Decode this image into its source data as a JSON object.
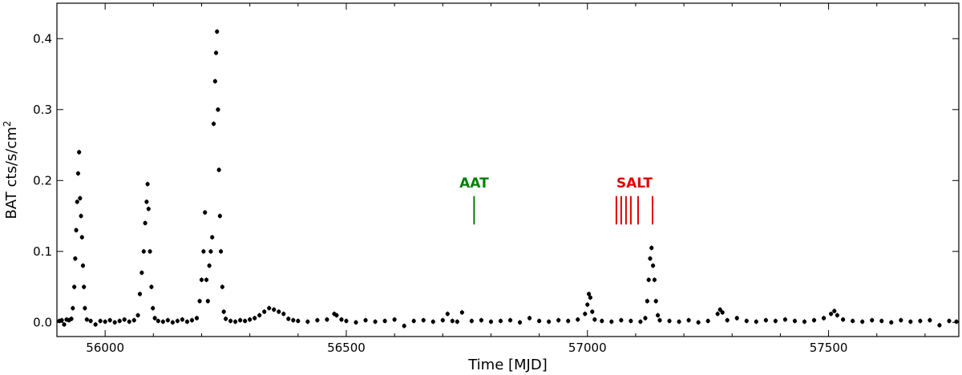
{
  "chart_data": {
    "type": "scatter",
    "title": "",
    "xlabel": "Time [MJD]",
    "ylabel": "BAT cts/s/cm",
    "ylabel_superscript": "2",
    "xlim": [
      55900,
      57770
    ],
    "ylim": [
      -0.02,
      0.45
    ],
    "xticks": [
      56000,
      56500,
      57000,
      57500
    ],
    "xtick_labels": [
      "56000",
      "56500",
      "57000",
      "57500"
    ],
    "yticks": [
      0.0,
      0.1,
      0.2,
      0.3,
      0.4
    ],
    "ytick_labels": [
      "0.0",
      "0.1",
      "0.2",
      "0.3",
      "0.4"
    ],
    "grid": false,
    "series": [
      {
        "marker": "dot",
        "color": "#000000",
        "points": [
          [
            55905,
            0.002
          ],
          [
            55910,
            0.003
          ],
          [
            55915,
            -0.003
          ],
          [
            55920,
            0.004
          ],
          [
            55925,
            0.003
          ],
          [
            55930,
            0.005
          ],
          [
            55933,
            0.02
          ],
          [
            55936,
            0.05
          ],
          [
            55938,
            0.09
          ],
          [
            55940,
            0.13
          ],
          [
            55942,
            0.17
          ],
          [
            55944,
            0.21
          ],
          [
            55946,
            0.24
          ],
          [
            55948,
            0.175
          ],
          [
            55950,
            0.15
          ],
          [
            55952,
            0.12
          ],
          [
            55954,
            0.08
          ],
          [
            55956,
            0.05
          ],
          [
            55958,
            0.02
          ],
          [
            55962,
            0.004
          ],
          [
            55970,
            0.002
          ],
          [
            55980,
            -0.003
          ],
          [
            55990,
            0.002
          ],
          [
            56000,
            0.001
          ],
          [
            56010,
            0.003
          ],
          [
            56020,
            0.0
          ],
          [
            56030,
            0.002
          ],
          [
            56040,
            0.004
          ],
          [
            56050,
            0.001
          ],
          [
            56060,
            0.003
          ],
          [
            56068,
            0.01
          ],
          [
            56072,
            0.04
          ],
          [
            56076,
            0.07
          ],
          [
            56080,
            0.1
          ],
          [
            56083,
            0.14
          ],
          [
            56086,
            0.17
          ],
          [
            56088,
            0.195
          ],
          [
            56090,
            0.16
          ],
          [
            56093,
            0.1
          ],
          [
            56096,
            0.05
          ],
          [
            56099,
            0.02
          ],
          [
            56103,
            0.006
          ],
          [
            56110,
            0.002
          ],
          [
            56120,
            0.001
          ],
          [
            56130,
            0.003
          ],
          [
            56140,
            0.0
          ],
          [
            56150,
            0.002
          ],
          [
            56160,
            0.004
          ],
          [
            56170,
            0.001
          ],
          [
            56180,
            0.003
          ],
          [
            56190,
            0.006
          ],
          [
            56196,
            0.03
          ],
          [
            56200,
            0.06
          ],
          [
            56204,
            0.1
          ],
          [
            56207,
            0.155
          ],
          [
            56210,
            0.06
          ],
          [
            56213,
            0.03
          ],
          [
            56216,
            0.08
          ],
          [
            56219,
            0.1
          ],
          [
            56222,
            0.12
          ],
          [
            56225,
            0.28
          ],
          [
            56228,
            0.34
          ],
          [
            56230,
            0.38
          ],
          [
            56232,
            0.41
          ],
          [
            56234,
            0.3
          ],
          [
            56236,
            0.215
          ],
          [
            56238,
            0.15
          ],
          [
            56240,
            0.1
          ],
          [
            56243,
            0.05
          ],
          [
            56246,
            0.015
          ],
          [
            56250,
            0.005
          ],
          [
            56260,
            0.002
          ],
          [
            56270,
            0.001
          ],
          [
            56280,
            0.003
          ],
          [
            56290,
            0.002
          ],
          [
            56300,
            0.004
          ],
          [
            56310,
            0.006
          ],
          [
            56320,
            0.01
          ],
          [
            56330,
            0.015
          ],
          [
            56340,
            0.02
          ],
          [
            56350,
            0.018
          ],
          [
            56360,
            0.015
          ],
          [
            56370,
            0.012
          ],
          [
            56380,
            0.005
          ],
          [
            56390,
            0.003
          ],
          [
            56400,
            0.002
          ],
          [
            56420,
            0.001
          ],
          [
            56440,
            0.003
          ],
          [
            56460,
            0.004
          ],
          [
            56475,
            0.012
          ],
          [
            56480,
            0.01
          ],
          [
            56490,
            0.004
          ],
          [
            56500,
            0.002
          ],
          [
            56520,
            0.0
          ],
          [
            56540,
            0.003
          ],
          [
            56560,
            0.001
          ],
          [
            56580,
            0.002
          ],
          [
            56600,
            0.004
          ],
          [
            56620,
            -0.005
          ],
          [
            56640,
            0.002
          ],
          [
            56660,
            0.003
          ],
          [
            56680,
            0.001
          ],
          [
            56700,
            0.003
          ],
          [
            56710,
            0.012
          ],
          [
            56720,
            0.002
          ],
          [
            56730,
            0.001
          ],
          [
            56740,
            0.014
          ],
          [
            56760,
            0.002
          ],
          [
            56780,
            0.003
          ],
          [
            56800,
            0.001
          ],
          [
            56820,
            0.002
          ],
          [
            56840,
            0.003
          ],
          [
            56860,
            0.0
          ],
          [
            56880,
            0.006
          ],
          [
            56900,
            0.002
          ],
          [
            56920,
            0.001
          ],
          [
            56940,
            0.003
          ],
          [
            56960,
            0.002
          ],
          [
            56980,
            0.004
          ],
          [
            56995,
            0.012
          ],
          [
            57000,
            0.025
          ],
          [
            57003,
            0.04
          ],
          [
            57006,
            0.035
          ],
          [
            57010,
            0.015
          ],
          [
            57015,
            0.004
          ],
          [
            57030,
            0.002
          ],
          [
            57050,
            0.001
          ],
          [
            57070,
            0.003
          ],
          [
            57090,
            0.002
          ],
          [
            57110,
            0.001
          ],
          [
            57120,
            0.006
          ],
          [
            57124,
            0.03
          ],
          [
            57127,
            0.06
          ],
          [
            57130,
            0.09
          ],
          [
            57133,
            0.105
          ],
          [
            57136,
            0.08
          ],
          [
            57139,
            0.06
          ],
          [
            57142,
            0.03
          ],
          [
            57146,
            0.01
          ],
          [
            57150,
            0.003
          ],
          [
            57170,
            0.002
          ],
          [
            57190,
            0.001
          ],
          [
            57210,
            0.003
          ],
          [
            57230,
            0.0
          ],
          [
            57250,
            0.002
          ],
          [
            57270,
            0.012
          ],
          [
            57275,
            0.018
          ],
          [
            57280,
            0.014
          ],
          [
            57290,
            0.003
          ],
          [
            57310,
            0.006
          ],
          [
            57330,
            0.002
          ],
          [
            57350,
            0.001
          ],
          [
            57370,
            0.003
          ],
          [
            57390,
            0.002
          ],
          [
            57410,
            0.004
          ],
          [
            57430,
            0.002
          ],
          [
            57450,
            0.001
          ],
          [
            57470,
            0.003
          ],
          [
            57490,
            0.006
          ],
          [
            57505,
            0.012
          ],
          [
            57512,
            0.016
          ],
          [
            57518,
            0.01
          ],
          [
            57530,
            0.004
          ],
          [
            57550,
            0.002
          ],
          [
            57570,
            0.001
          ],
          [
            57590,
            0.003
          ],
          [
            57610,
            0.002
          ],
          [
            57630,
            0.0
          ],
          [
            57650,
            0.003
          ],
          [
            57670,
            0.001
          ],
          [
            57690,
            0.002
          ],
          [
            57710,
            0.003
          ],
          [
            57730,
            -0.004
          ],
          [
            57750,
            0.002
          ],
          [
            57765,
            0.001
          ]
        ]
      }
    ],
    "annotations": [
      {
        "label": "AAT",
        "color": "#008000",
        "x": [
          56765
        ]
      },
      {
        "label": "SALT",
        "color": "#e00000",
        "x": [
          57060,
          57070,
          57080,
          57090,
          57105,
          57135
        ]
      }
    ]
  }
}
